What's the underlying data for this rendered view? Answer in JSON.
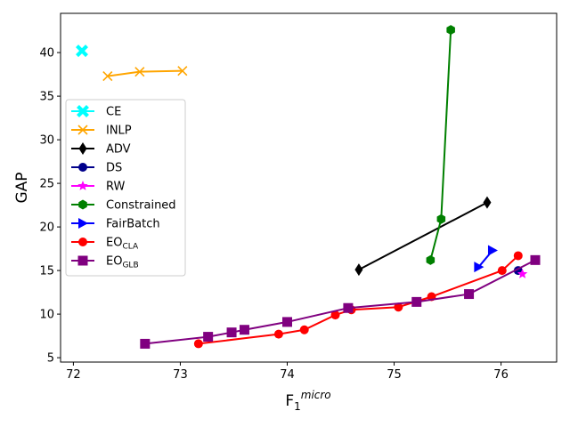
{
  "chart_data": {
    "type": "line",
    "title": "",
    "xlabel": "F",
    "xlabel_sub": "1",
    "xlabel_sup": "micro",
    "ylabel": "GAP",
    "xlim": [
      71.88,
      76.52
    ],
    "ylim": [
      4.5,
      44.5
    ],
    "xticks": [
      72,
      73,
      74,
      75,
      76
    ],
    "yticks": [
      5,
      10,
      15,
      20,
      25,
      30,
      35,
      40
    ],
    "legend_position": "center-left",
    "series": [
      {
        "name": "CE",
        "display": "CE",
        "color": "#00ffff",
        "marker": "x-filled",
        "points": [
          [
            72.08,
            40.2
          ]
        ]
      },
      {
        "name": "INLP",
        "display": "INLP",
        "color": "#ffa500",
        "marker": "x",
        "points": [
          [
            72.32,
            37.3
          ],
          [
            72.62,
            37.8
          ],
          [
            73.02,
            37.9
          ]
        ]
      },
      {
        "name": "ADV",
        "display": "ADV",
        "color": "#000000",
        "marker": "thin-diamond",
        "points": [
          [
            74.67,
            15.1
          ],
          [
            75.87,
            22.8
          ]
        ]
      },
      {
        "name": "DS",
        "display": "DS",
        "color": "#00008b",
        "marker": "circle",
        "points": [
          [
            76.16,
            15.0
          ]
        ]
      },
      {
        "name": "RW",
        "display": "RW",
        "color": "#ff00ff",
        "marker": "star",
        "points": [
          [
            76.2,
            14.6
          ]
        ]
      },
      {
        "name": "Constrained",
        "display": "Constrained",
        "color": "#008000",
        "marker": "hexagon",
        "points": [
          [
            75.34,
            16.2
          ],
          [
            75.44,
            20.9
          ],
          [
            75.53,
            42.6
          ]
        ]
      },
      {
        "name": "FairBatch",
        "display": "FairBatch",
        "color": "#0000ff",
        "marker": "triangle-right",
        "points": [
          [
            75.79,
            15.4
          ],
          [
            75.92,
            17.3
          ]
        ]
      },
      {
        "name": "EO_CLA",
        "display": "EO",
        "sub": "CLA",
        "color": "#ff0000",
        "marker": "circle",
        "points": [
          [
            73.17,
            6.6
          ],
          [
            73.92,
            7.7
          ],
          [
            74.16,
            8.2
          ],
          [
            74.45,
            9.9
          ],
          [
            74.6,
            10.5
          ],
          [
            75.04,
            10.8
          ],
          [
            75.35,
            12.0
          ],
          [
            76.01,
            15.0
          ],
          [
            76.16,
            16.7
          ]
        ]
      },
      {
        "name": "EO_GLB",
        "display": "EO",
        "sub": "GLB",
        "color": "#800080",
        "marker": "square",
        "points": [
          [
            72.67,
            6.6
          ],
          [
            73.26,
            7.4
          ],
          [
            73.48,
            7.9
          ],
          [
            73.6,
            8.2
          ],
          [
            74.0,
            9.1
          ],
          [
            74.57,
            10.7
          ],
          [
            75.21,
            11.4
          ],
          [
            75.7,
            12.3
          ],
          [
            76.32,
            16.2
          ]
        ]
      }
    ]
  }
}
